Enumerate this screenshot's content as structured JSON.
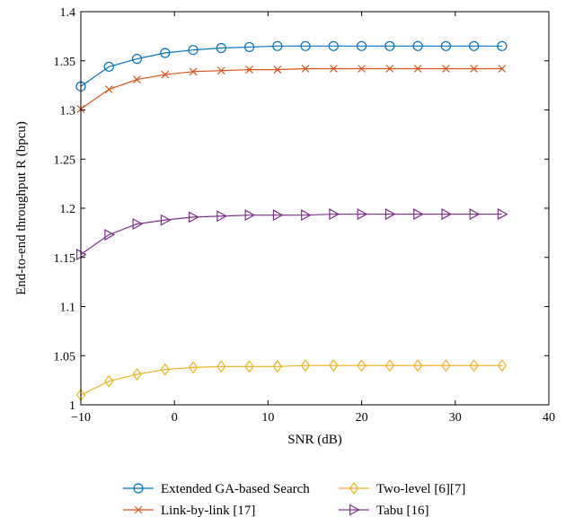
{
  "chart_data": {
    "type": "line",
    "title": "",
    "xlabel": "SNR (dB)",
    "ylabel": "End-to-end throughput R (bpcu)",
    "xlim": [
      -10,
      40
    ],
    "ylim": [
      1,
      1.4
    ],
    "xticks": [
      -10,
      0,
      10,
      20,
      30,
      40
    ],
    "xtick_labels": [
      "−10",
      "0",
      "10",
      "20",
      "30",
      "40"
    ],
    "yticks": [
      1,
      1.05,
      1.1,
      1.15,
      1.2,
      1.25,
      1.3,
      1.35,
      1.4
    ],
    "ytick_labels": [
      "1",
      "1.05",
      "1.1",
      "1.15",
      "1.2",
      "1.25",
      "1.3",
      "1.35",
      "1.4"
    ],
    "grid": false,
    "legend_position": "bottom",
    "x": [
      -10,
      -7,
      -4,
      -1,
      2,
      5,
      8,
      11,
      14,
      17,
      20,
      23,
      26,
      29,
      32,
      35
    ],
    "series": [
      {
        "name": "Extended GA-based Search",
        "color": "#0072bd",
        "marker": "circle",
        "values": [
          1.324,
          1.344,
          1.352,
          1.358,
          1.361,
          1.363,
          1.364,
          1.365,
          1.365,
          1.365,
          1.365,
          1.365,
          1.365,
          1.365,
          1.365,
          1.365
        ]
      },
      {
        "name": "Link-by-link [17]",
        "color": "#d95319",
        "marker": "x",
        "values": [
          1.301,
          1.321,
          1.331,
          1.336,
          1.339,
          1.34,
          1.341,
          1.341,
          1.342,
          1.342,
          1.342,
          1.342,
          1.342,
          1.342,
          1.342,
          1.342
        ]
      },
      {
        "name": "Two-level [6][7]",
        "color": "#edb120",
        "marker": "diamond",
        "values": [
          1.01,
          1.024,
          1.031,
          1.036,
          1.038,
          1.039,
          1.039,
          1.039,
          1.04,
          1.04,
          1.04,
          1.04,
          1.04,
          1.04,
          1.04,
          1.04
        ]
      },
      {
        "name": "Tabu [16]",
        "color": "#7e2f8e",
        "marker": "triangle-right",
        "values": [
          1.153,
          1.173,
          1.184,
          1.188,
          1.191,
          1.192,
          1.193,
          1.193,
          1.193,
          1.194,
          1.194,
          1.194,
          1.194,
          1.194,
          1.194,
          1.194
        ]
      }
    ]
  }
}
